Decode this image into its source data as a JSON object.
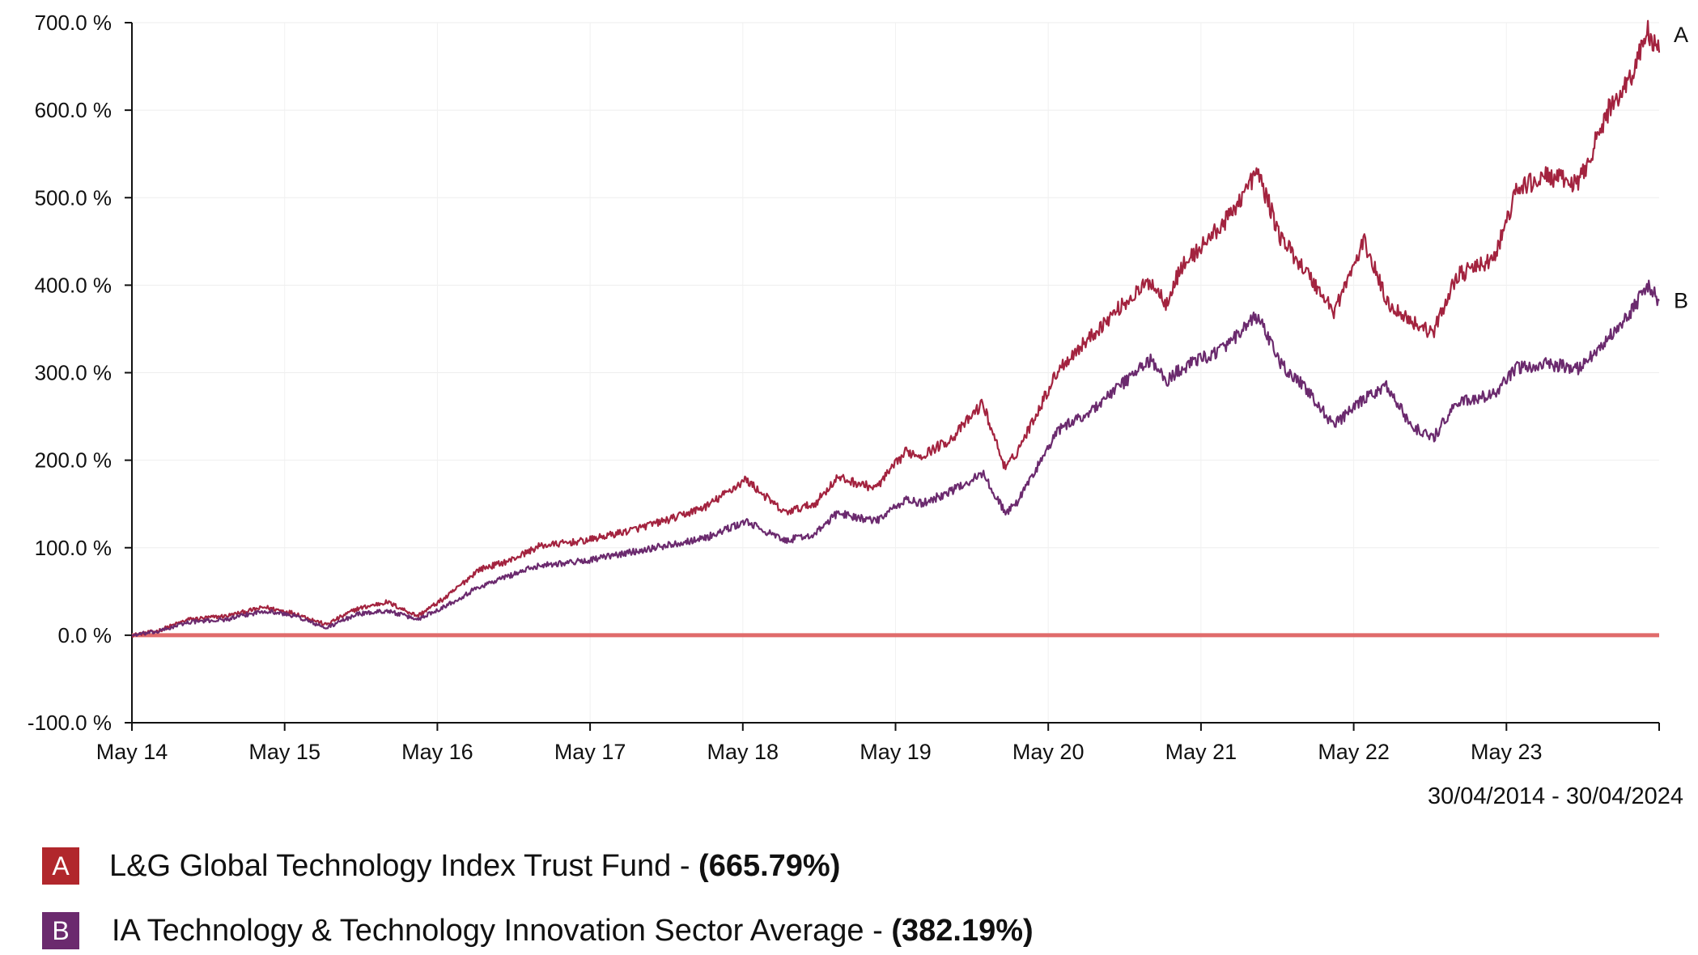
{
  "chart_data": {
    "type": "line",
    "x_ticks": [
      "May 14",
      "May 15",
      "May 16",
      "May 17",
      "May 18",
      "May 19",
      "May 20",
      "May 21",
      "May 22",
      "May 23"
    ],
    "y_ticks": [
      "700.0 %",
      "600.0 %",
      "500.0 %",
      "400.0 %",
      "300.0 %",
      "200.0 %",
      "100.0 %",
      "0.0 %",
      "-100.0 %"
    ],
    "ylim": [
      -100,
      700
    ],
    "xlim": [
      2014.33,
      2024.33
    ],
    "date_range": "30/04/2014 - 30/04/2024",
    "reference_line": 0,
    "series": [
      {
        "id": "A",
        "name": "L&G Global Technology Index Trust Fund",
        "total_return": "(665.79%)",
        "color": "#a3233f",
        "x": [
          2014.33,
          2014.5,
          2014.7,
          2014.95,
          2015.2,
          2015.4,
          2015.6,
          2015.8,
          2016.0,
          2016.2,
          2016.4,
          2016.6,
          2016.8,
          2017.0,
          2017.3,
          2017.6,
          2017.9,
          2018.1,
          2018.35,
          2018.6,
          2018.8,
          2018.95,
          2019.2,
          2019.4,
          2019.5,
          2019.7,
          2019.9,
          2020.05,
          2020.12,
          2020.2,
          2020.4,
          2020.6,
          2020.8,
          2021.0,
          2021.1,
          2021.2,
          2021.5,
          2021.7,
          2021.85,
          2022.0,
          2022.2,
          2022.4,
          2022.55,
          2022.7,
          2022.85,
          2023.0,
          2023.25,
          2023.4,
          2023.6,
          2023.8,
          2024.0,
          2024.15,
          2024.25,
          2024.33
        ],
        "values": [
          0,
          5,
          18,
          22,
          32,
          25,
          12,
          30,
          38,
          22,
          45,
          75,
          85,
          102,
          108,
          120,
          135,
          148,
          178,
          140,
          150,
          180,
          168,
          210,
          205,
          225,
          265,
          190,
          208,
          235,
          305,
          340,
          375,
          405,
          380,
          420,
          475,
          530,
          455,
          420,
          370,
          450,
          380,
          360,
          345,
          410,
          430,
          510,
          525,
          515,
          600,
          640,
          690,
          665.79
        ]
      },
      {
        "id": "B",
        "name": "IA Technology & Technology Innovation Sector Average",
        "total_return": "(382.19%)",
        "color": "#6b2a6e",
        "x": [
          2014.33,
          2014.5,
          2014.7,
          2014.95,
          2015.2,
          2015.4,
          2015.6,
          2015.8,
          2016.0,
          2016.2,
          2016.4,
          2016.6,
          2016.8,
          2017.0,
          2017.3,
          2017.6,
          2017.9,
          2018.1,
          2018.35,
          2018.6,
          2018.8,
          2018.95,
          2019.2,
          2019.4,
          2019.5,
          2019.7,
          2019.9,
          2020.05,
          2020.12,
          2020.2,
          2020.4,
          2020.6,
          2020.8,
          2021.0,
          2021.1,
          2021.2,
          2021.5,
          2021.7,
          2021.85,
          2022.0,
          2022.2,
          2022.4,
          2022.55,
          2022.7,
          2022.85,
          2023.0,
          2023.25,
          2023.4,
          2023.6,
          2023.8,
          2024.0,
          2024.15,
          2024.25,
          2024.33
        ],
        "values": [
          0,
          4,
          15,
          18,
          28,
          22,
          8,
          24,
          28,
          18,
          35,
          55,
          68,
          80,
          85,
          95,
          105,
          112,
          130,
          108,
          115,
          140,
          130,
          155,
          150,
          165,
          185,
          140,
          150,
          175,
          235,
          255,
          285,
          315,
          290,
          305,
          330,
          365,
          310,
          285,
          240,
          270,
          285,
          240,
          225,
          265,
          275,
          305,
          310,
          305,
          340,
          370,
          400,
          382.19
        ]
      }
    ]
  }
}
